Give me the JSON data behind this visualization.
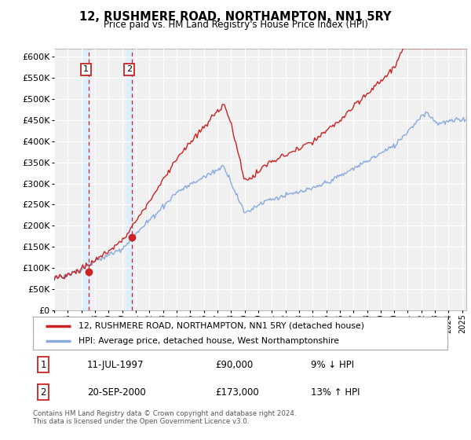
{
  "title": "12, RUSHMERE ROAD, NORTHAMPTON, NN1 5RY",
  "subtitle": "Price paid vs. HM Land Registry's House Price Index (HPI)",
  "legend_line1": "12, RUSHMERE ROAD, NORTHAMPTON, NN1 5RY (detached house)",
  "legend_line2": "HPI: Average price, detached house, West Northamptonshire",
  "transaction1_date": "11-JUL-1997",
  "transaction1_price": "£90,000",
  "transaction1_hpi": "9% ↓ HPI",
  "transaction2_date": "20-SEP-2000",
  "transaction2_price": "£173,000",
  "transaction2_hpi": "13% ↑ HPI",
  "footer": "Contains HM Land Registry data © Crown copyright and database right 2024.\nThis data is licensed under the Open Government Licence v3.0.",
  "price_line_color": "#cc2222",
  "hpi_line_color": "#88aadd",
  "plot_bg_color": "#f0f0f0",
  "grid_color": "#ffffff",
  "vline_color": "#cc2222",
  "vspan_color": "#ddeeff",
  "ylim": [
    0,
    620000
  ],
  "yticks": [
    0,
    50000,
    100000,
    150000,
    200000,
    250000,
    300000,
    350000,
    400000,
    450000,
    500000,
    550000,
    600000
  ],
  "transaction1_x": 1997.53,
  "transaction1_y": 90000,
  "transaction2_x": 2000.72,
  "transaction2_y": 173000,
  "xmin": 1995,
  "xmax": 2025.3
}
